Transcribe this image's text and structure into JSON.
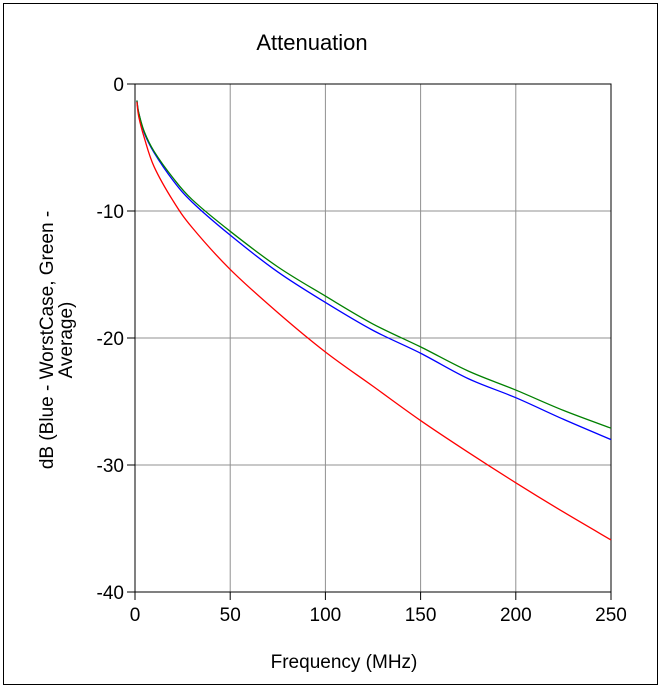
{
  "chart_data": {
    "type": "line",
    "title": "Attenuation",
    "xlabel": "Frequency (MHz)",
    "ylabel_line1": "dB (Blue - WorstCase, Green -",
    "ylabel_line2": "Average)",
    "xlim": [
      0,
      250
    ],
    "ylim": [
      -40,
      0
    ],
    "x_ticks": [
      0,
      50,
      100,
      150,
      200,
      250
    ],
    "x_tick_labels": [
      "0",
      "50",
      "100",
      "150",
      "200",
      "250"
    ],
    "y_ticks": [
      0,
      -10,
      -20,
      -30,
      -40
    ],
    "y_tick_labels": [
      "0",
      "-10",
      "-20",
      "-30",
      "-40"
    ],
    "grid": true,
    "x": [
      1,
      2,
      5,
      10,
      20,
      30,
      50,
      75,
      100,
      125,
      150,
      175,
      200,
      225,
      250
    ],
    "series": [
      {
        "color": "#0000ff",
        "values": [
          -1.3,
          -2.3,
          -3.9,
          -5.4,
          -7.6,
          -9.3,
          -11.9,
          -14.8,
          -17.2,
          -19.4,
          -21.2,
          -23.2,
          -24.7,
          -26.4,
          -28.0
        ]
      },
      {
        "color": "#008000",
        "values": [
          -1.3,
          -2.3,
          -3.8,
          -5.3,
          -7.4,
          -9.1,
          -11.6,
          -14.4,
          -16.7,
          -18.9,
          -20.7,
          -22.6,
          -24.1,
          -25.7,
          -27.1
        ]
      },
      {
        "color": "#ff0000",
        "values": [
          -1.4,
          -2.6,
          -4.3,
          -6.5,
          -9.2,
          -11.3,
          -14.6,
          -18.0,
          -21.1,
          -23.8,
          -26.5,
          -29.0,
          -31.4,
          -33.7,
          -35.9
        ]
      }
    ]
  }
}
